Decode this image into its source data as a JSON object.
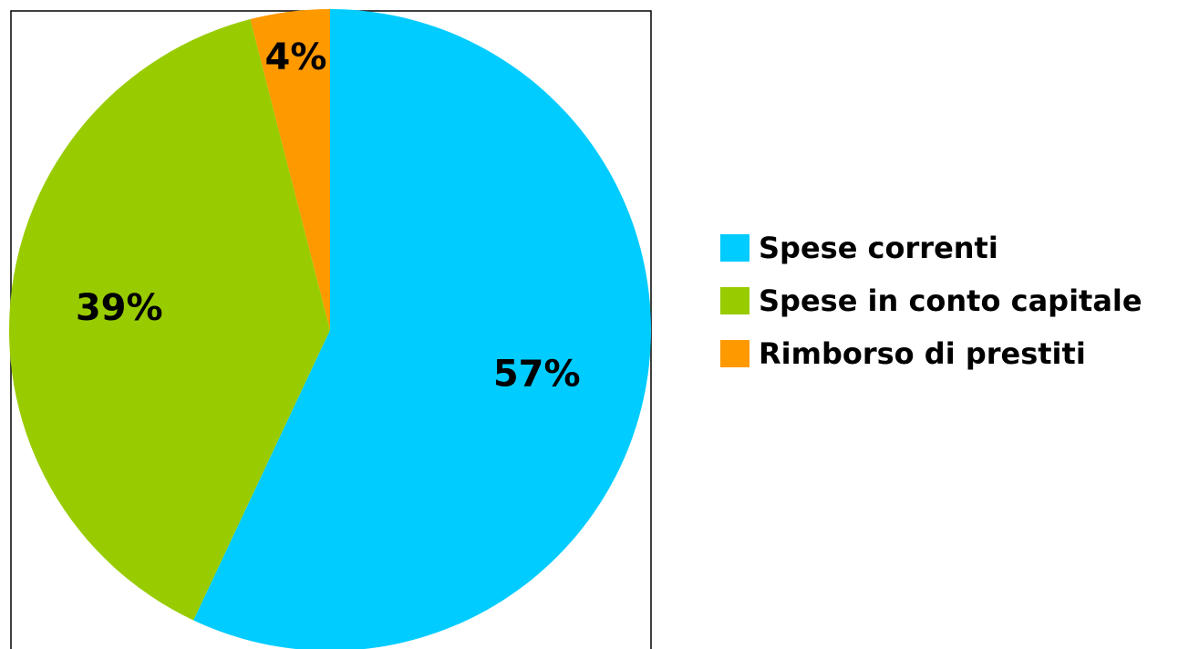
{
  "chart_data": {
    "type": "pie",
    "categories": [
      "Spese correnti",
      "Spese in conto capitale",
      "Rimborso di prestiti"
    ],
    "values": [
      57,
      39,
      4
    ],
    "value_labels": [
      "57%",
      "39%",
      "4%"
    ],
    "colors": [
      "#00ccff",
      "#99cc00",
      "#ff9900"
    ],
    "legend": "right"
  }
}
